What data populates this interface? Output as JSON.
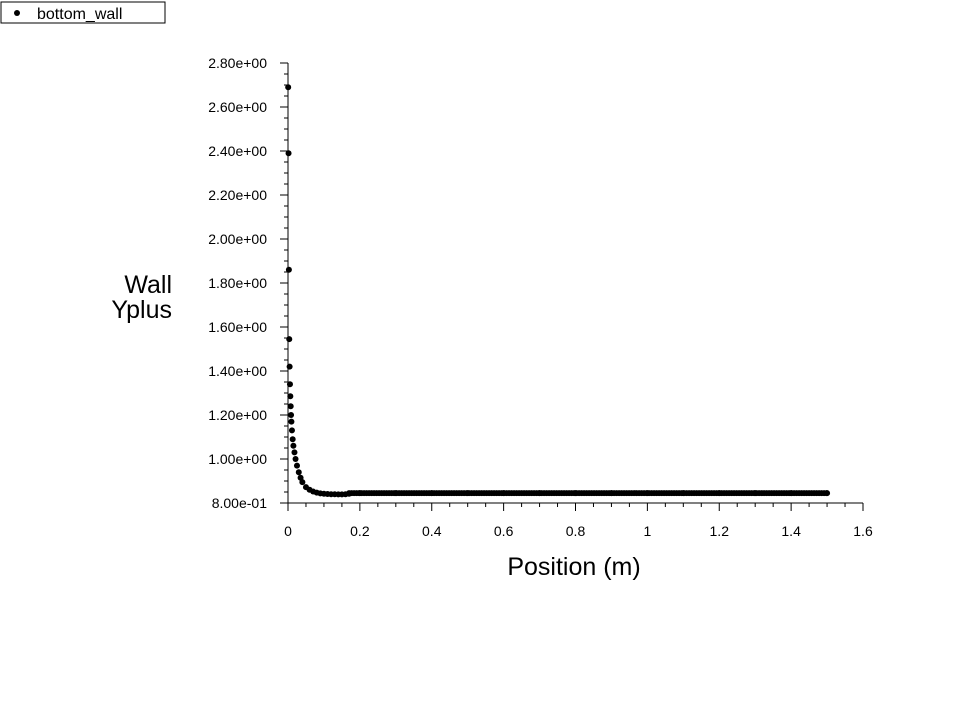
{
  "chart_data": {
    "type": "scatter",
    "xlabel": "Position (m)",
    "ylabel": [
      "Wall",
      "Yplus"
    ],
    "xlim": [
      0,
      1.6
    ],
    "ylim": [
      0.8,
      2.8
    ],
    "x_ticks": [
      0,
      0.2,
      0.4,
      0.6,
      0.8,
      1,
      1.2,
      1.4,
      1.6
    ],
    "x_tick_labels": [
      "0",
      "0.2",
      "0.4",
      "0.6",
      "0.8",
      "1",
      "1.2",
      "1.4",
      "1.6"
    ],
    "y_ticks": [
      0.8,
      1.0,
      1.2,
      1.4,
      1.6,
      1.8,
      2.0,
      2.2,
      2.4,
      2.6,
      2.8
    ],
    "y_tick_labels": [
      "8.00e-01",
      "1.00e+00",
      "1.20e+00",
      "1.40e+00",
      "1.60e+00",
      "1.80e+00",
      "2.00e+00",
      "2.20e+00",
      "2.40e+00",
      "2.60e+00",
      "2.80e+00"
    ],
    "grid": false,
    "legend_position": "top-left",
    "series": [
      {
        "name": "bottom_wall",
        "color": "#000000",
        "marker": "filled-circle",
        "x": [
          0.0005,
          0.0015,
          0.0025,
          0.0035,
          0.0045,
          0.0055,
          0.0065,
          0.0075,
          0.0085,
          0.0095,
          0.011,
          0.013,
          0.015,
          0.018,
          0.021,
          0.025,
          0.03,
          0.035,
          0.04,
          0.05,
          0.06,
          0.07,
          0.08,
          0.09,
          0.1,
          0.11,
          0.12,
          0.13,
          0.14,
          0.15,
          0.16,
          0.17,
          0.2,
          0.3,
          0.4,
          0.5,
          0.6,
          0.7,
          0.8,
          0.9,
          1.0,
          1.1,
          1.2,
          1.3,
          1.4,
          1.5
        ],
        "y": [
          2.69,
          2.39,
          1.86,
          1.545,
          1.42,
          1.34,
          1.285,
          1.24,
          1.2,
          1.17,
          1.13,
          1.09,
          1.06,
          1.03,
          1.0,
          0.97,
          0.94,
          0.915,
          0.895,
          0.872,
          0.86,
          0.852,
          0.847,
          0.844,
          0.842,
          0.841,
          0.84,
          0.84,
          0.839,
          0.839,
          0.84,
          0.842,
          0.845,
          0.845,
          0.845,
          0.845,
          0.845,
          0.845,
          0.845,
          0.845,
          0.845,
          0.845,
          0.845,
          0.845,
          0.845,
          0.845
        ]
      }
    ]
  }
}
